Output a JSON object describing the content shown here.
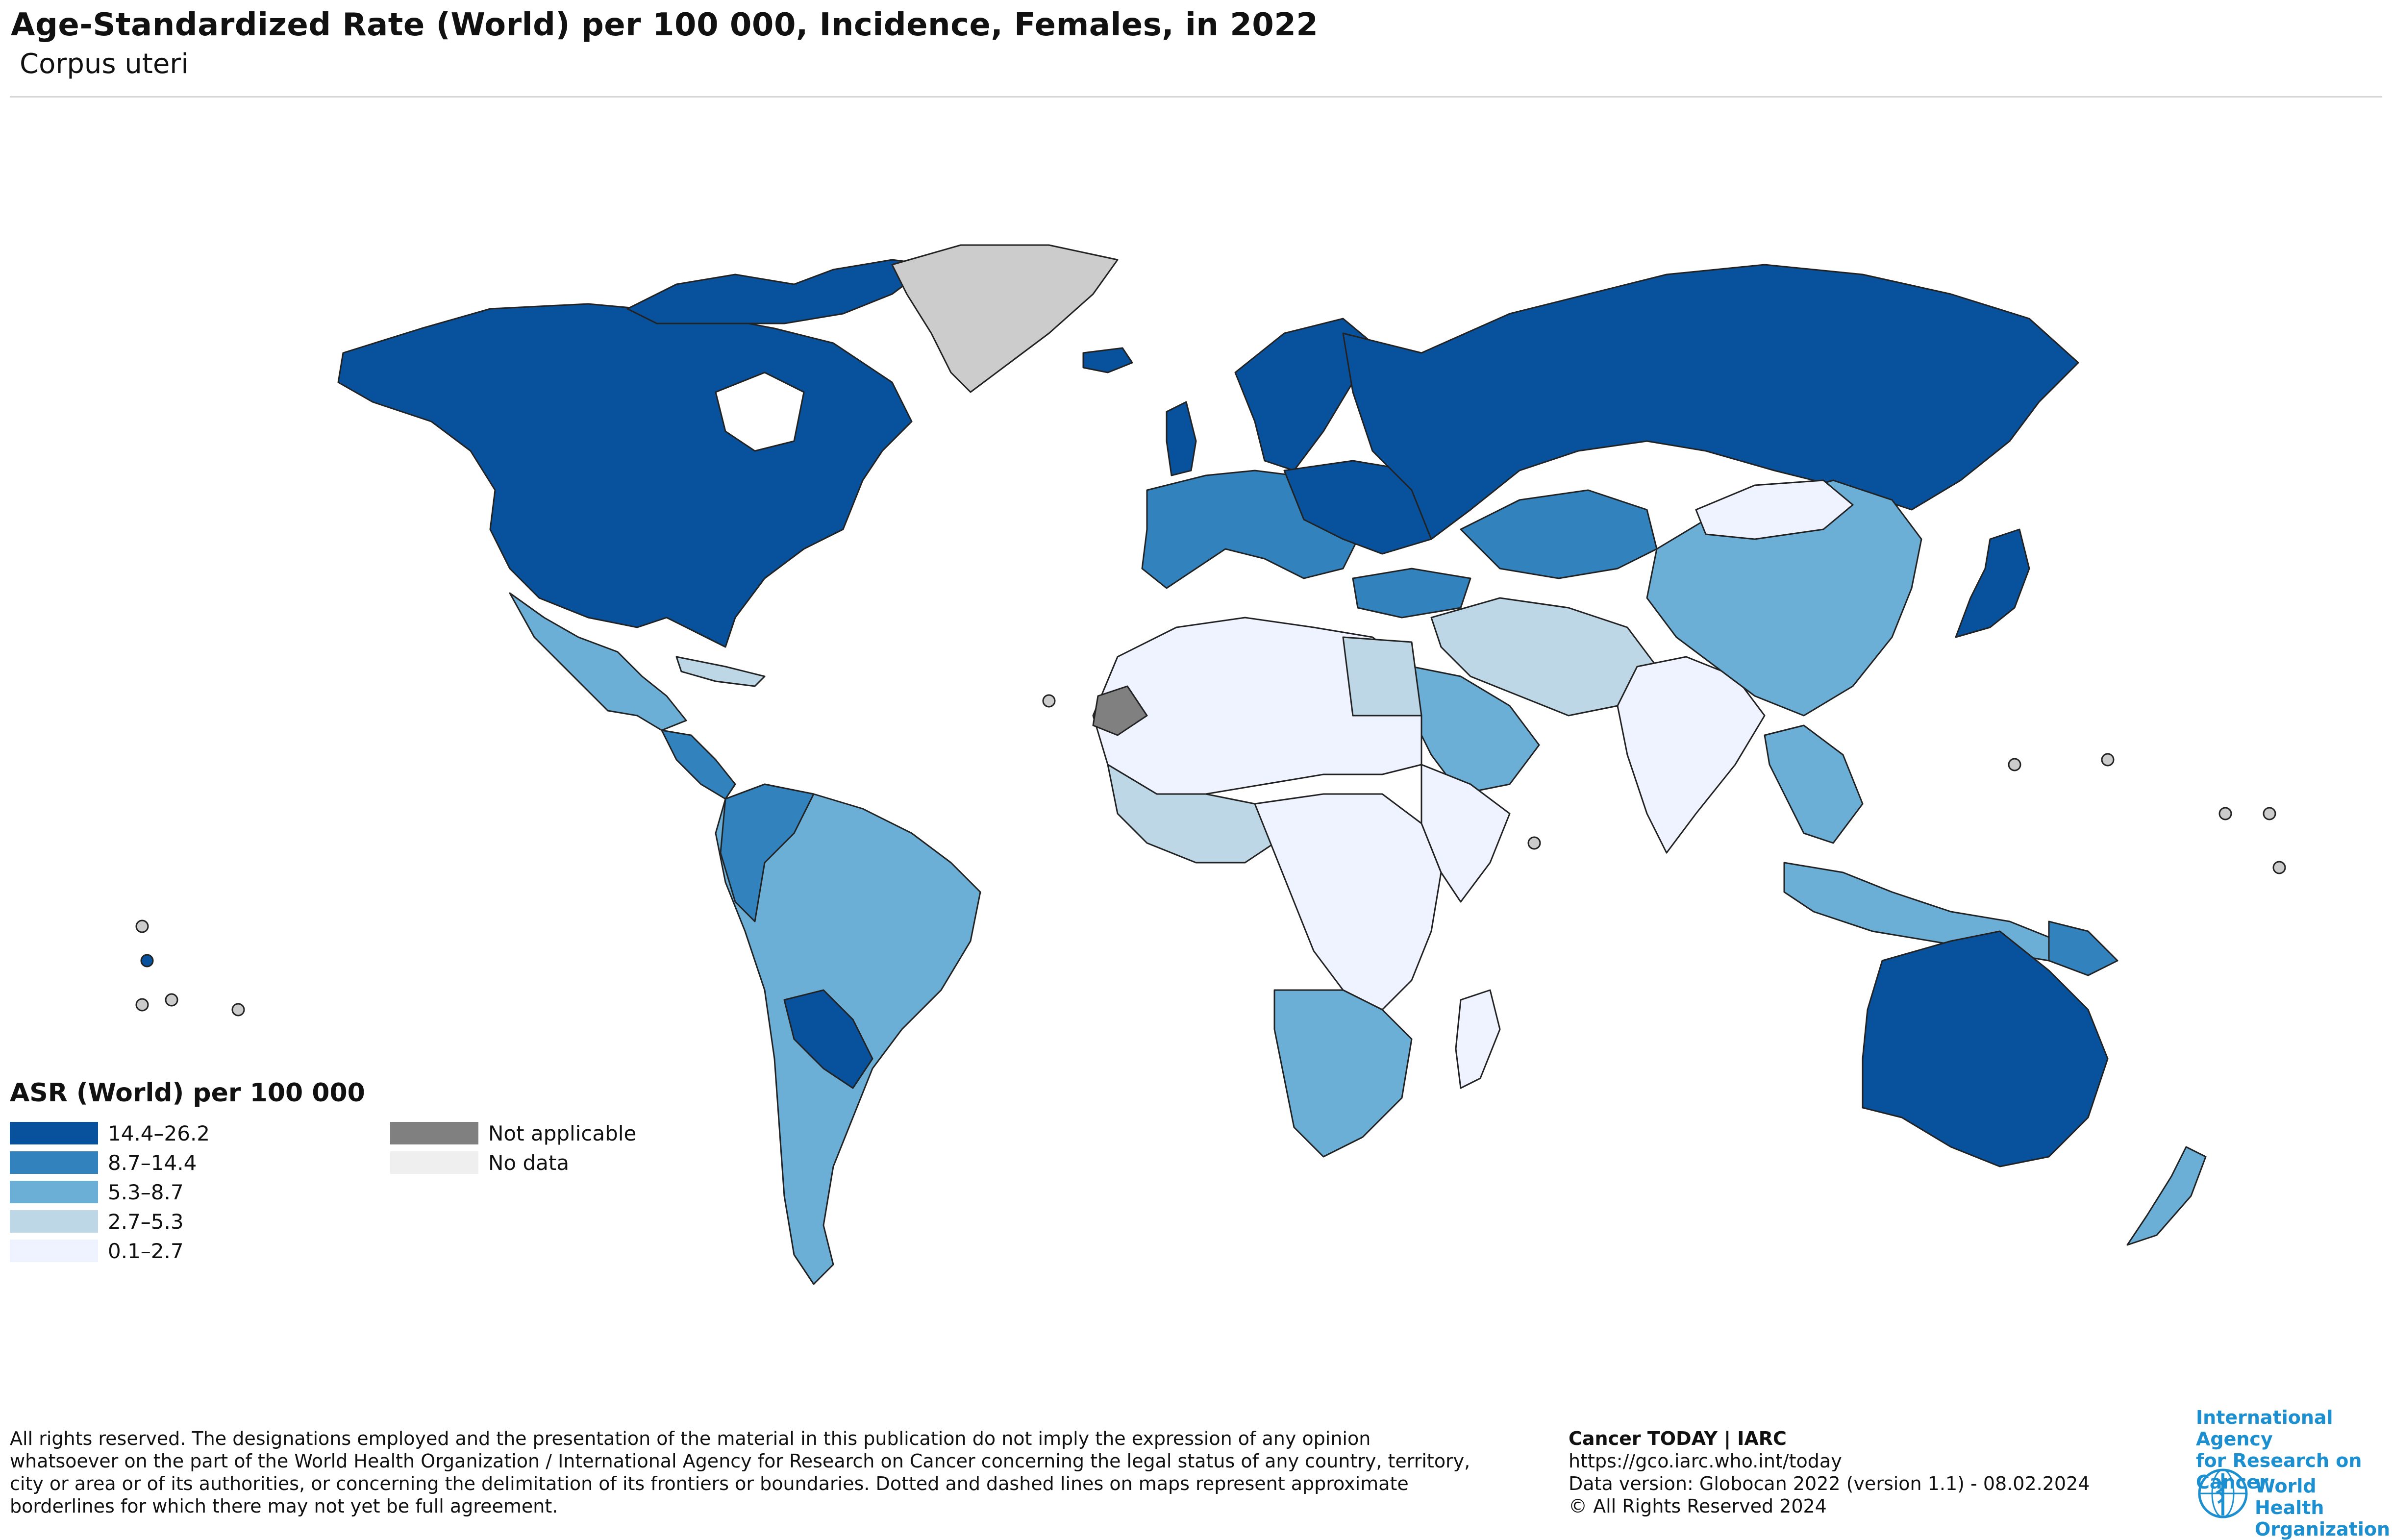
{
  "header": {
    "title": "Age-Standardized Rate (World) per 100 000, Incidence, Females, in 2022",
    "subtitle": "Corpus uteri"
  },
  "legend": {
    "title": "ASR (World) per 100 000",
    "ranges": [
      {
        "label": "14.4–26.2",
        "color": "#08519c"
      },
      {
        "label": "8.7–14.4",
        "color": "#3182bd"
      },
      {
        "label": "5.3–8.7",
        "color": "#6baed6"
      },
      {
        "label": "2.7–5.3",
        "color": "#bdd7e7"
      },
      {
        "label": "0.1–2.7",
        "color": "#eff3ff"
      }
    ],
    "other": [
      {
        "label": "Not applicable",
        "color": "#808080"
      },
      {
        "label": "No data",
        "color": "#efefef"
      }
    ]
  },
  "map_colors": {
    "greenland": "#cccccc",
    "stroke": "#222222"
  },
  "footer": {
    "disclaimer": "All rights reserved. The designations employed and the presentation of the material in this publication do not imply the expression of any opinion whatsoever on the part of the World Health Organization / International Agency for Research on Cancer concerning the legal status of any country, territory, city or area or of its authorities, or concerning the delimitation of its frontiers or boundaries. Dotted and dashed lines on maps represent approximate borderlines for which there may not yet be full agreement.",
    "brand": "Cancer TODAY | IARC",
    "url": "https://gco.iarc.who.int/today",
    "data_version": "Data version: Globocan 2022 (version 1.1) - 08.02.2024",
    "copyright": "© All Rights Reserved 2024"
  },
  "logos": {
    "iarc_line1": "International Agency",
    "iarc_line2": "for Research on Cancer",
    "who_line1": "World Health",
    "who_line2": "Organization"
  }
}
